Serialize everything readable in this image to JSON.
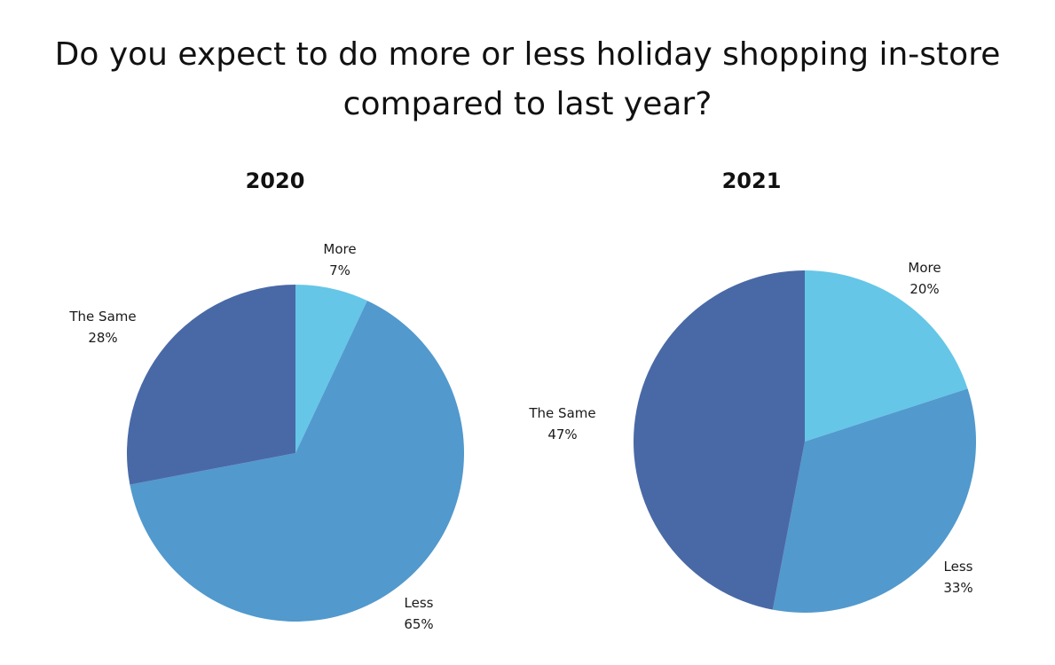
{
  "title": "Do you expect to do more or less holiday shopping in-store compared to last year?",
  "chart_data": [
    {
      "type": "pie",
      "title": "2020",
      "start_category": "More",
      "direction": "clockwise",
      "slices": [
        {
          "label": "More",
          "value": 7,
          "value_label": "7%",
          "color": "#65c6e7"
        },
        {
          "label": "Less",
          "value": 65,
          "value_label": "65%",
          "color": "#5299cd"
        },
        {
          "label": "The Same",
          "value": 28,
          "value_label": "28%",
          "color": "#4969a6"
        }
      ]
    },
    {
      "type": "pie",
      "title": "2021",
      "start_category": "More",
      "direction": "clockwise",
      "slices": [
        {
          "label": "More",
          "value": 20,
          "value_label": "20%",
          "color": "#65c6e7"
        },
        {
          "label": "Less",
          "value": 33,
          "value_label": "33%",
          "color": "#5299cd"
        },
        {
          "label": "The Same",
          "value": 47,
          "value_label": "47%",
          "color": "#4969a6"
        }
      ]
    }
  ]
}
